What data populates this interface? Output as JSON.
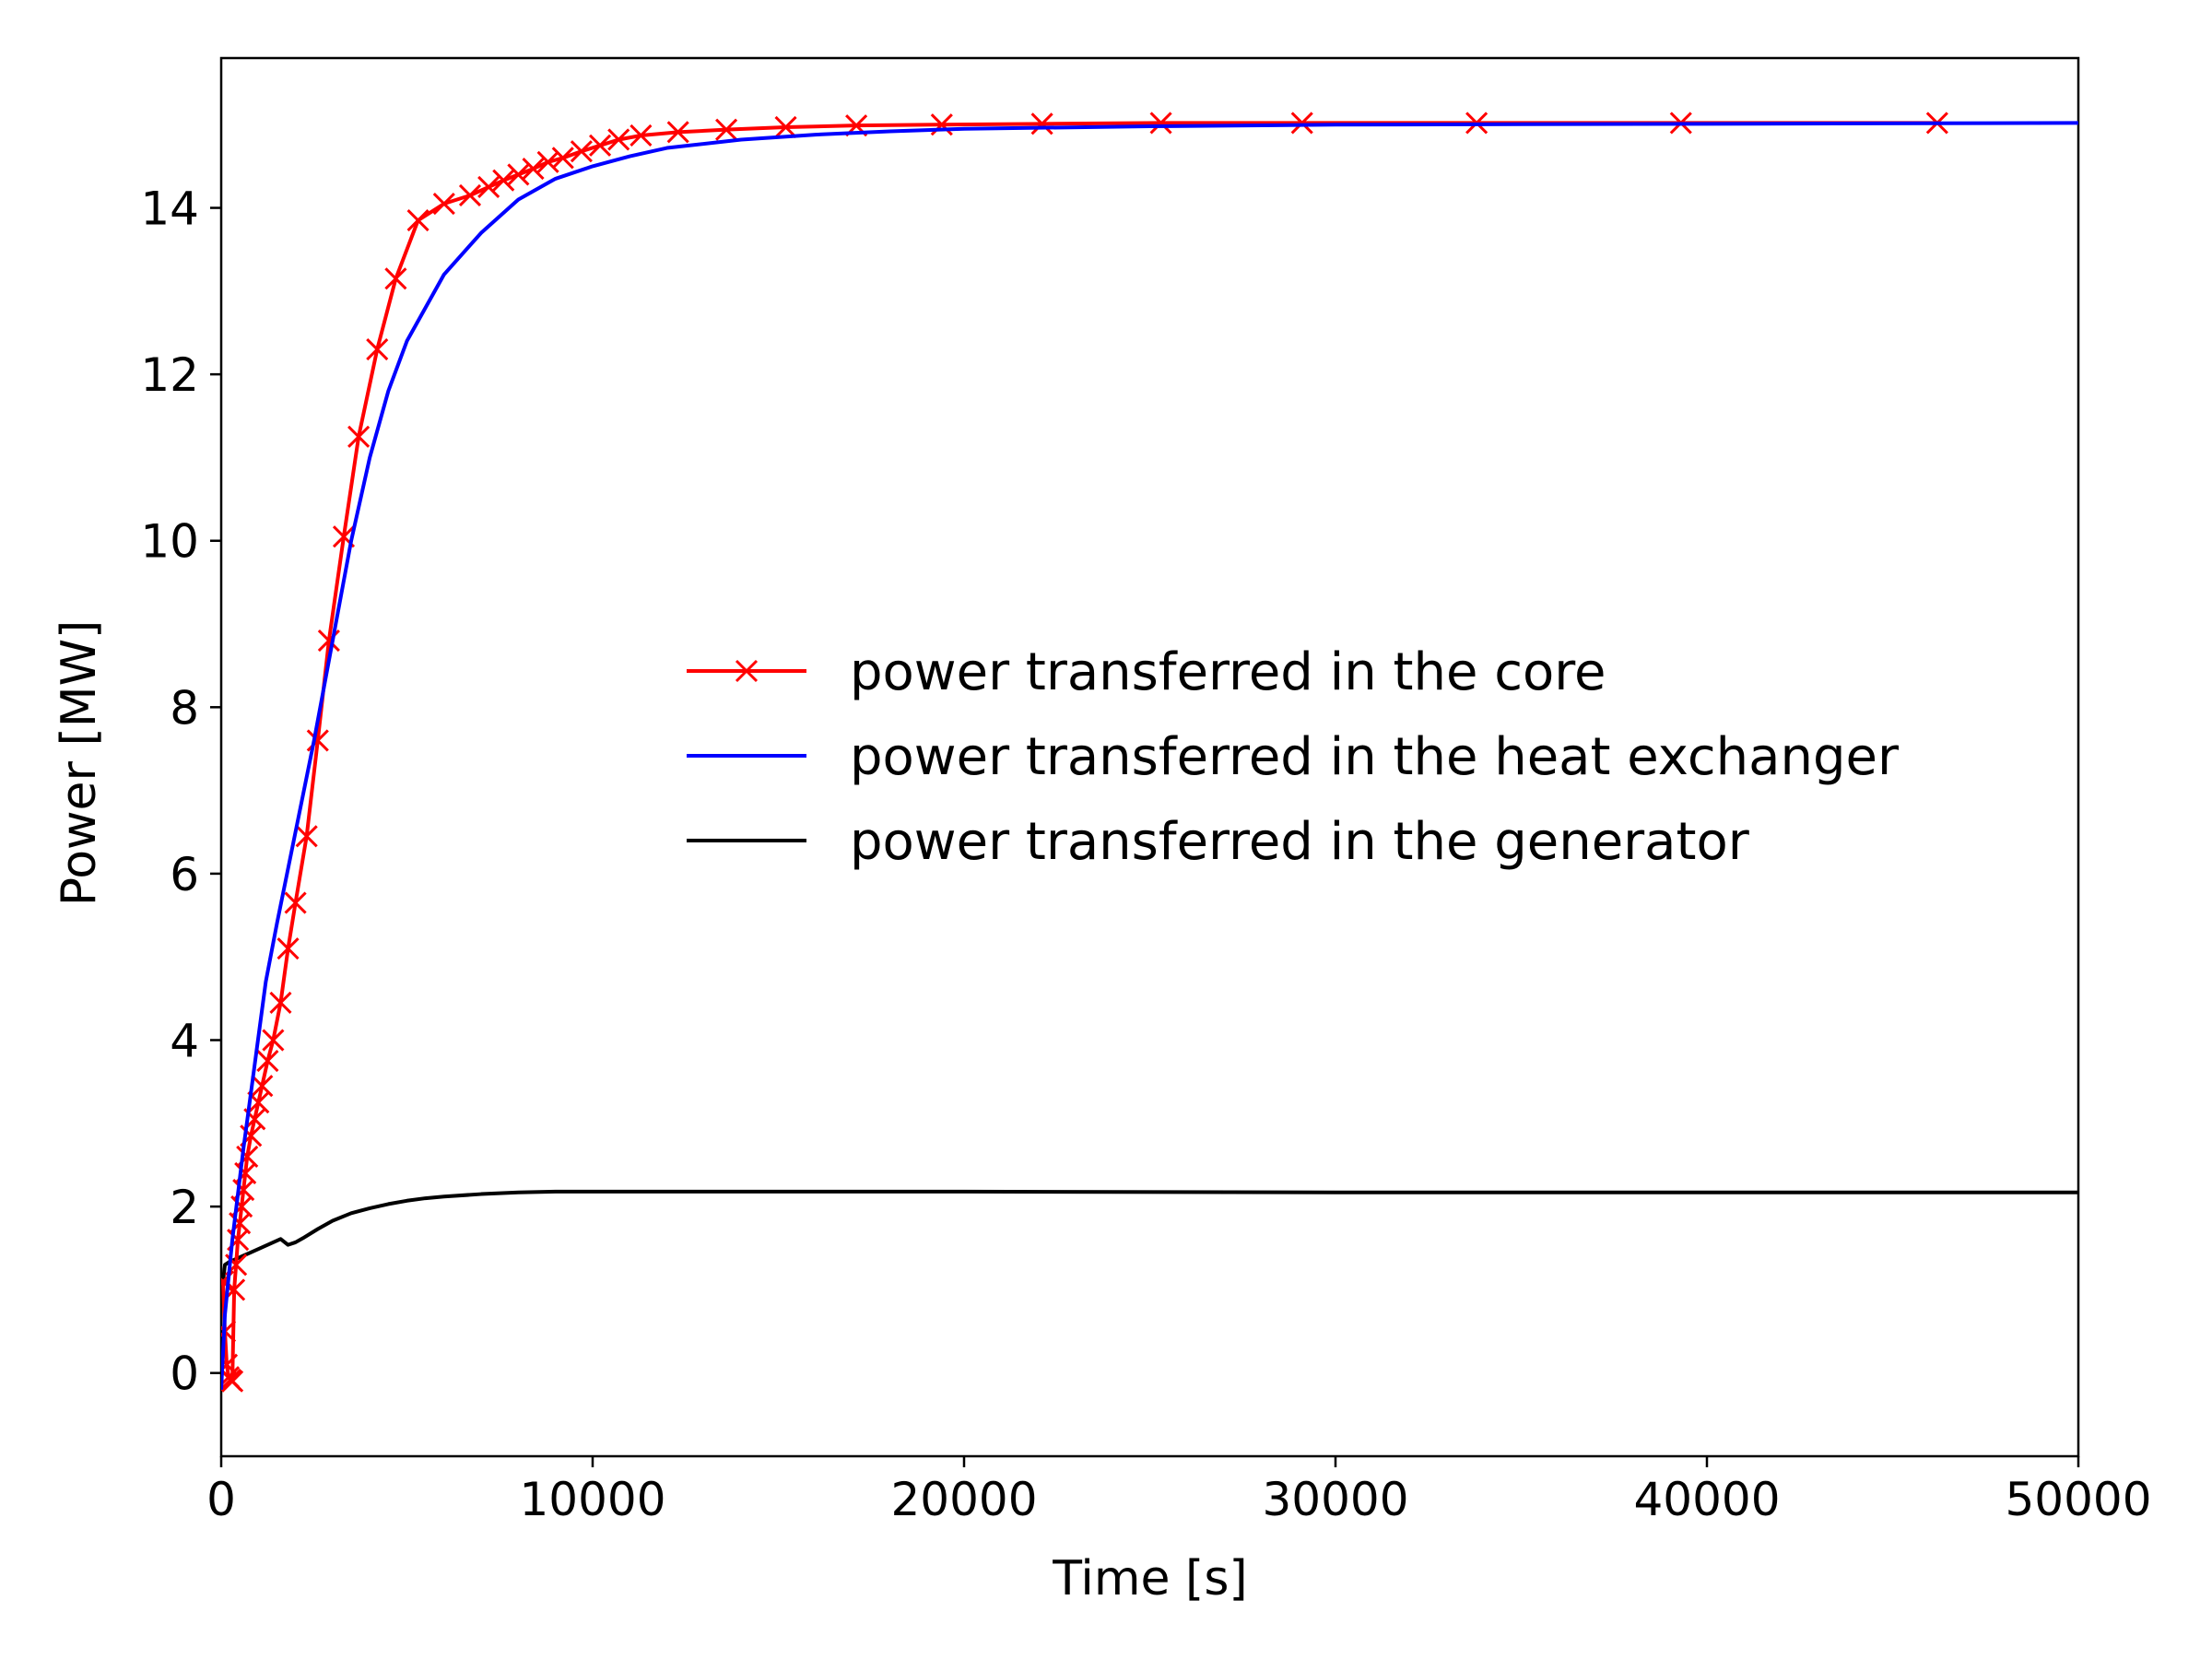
{
  "chart_data": {
    "type": "line",
    "xlabel": "Time [s]",
    "ylabel": "Power [MW]",
    "xlim": [
      0,
      50000
    ],
    "ylim": [
      -1,
      15.8
    ],
    "xticks": [
      0,
      10000,
      20000,
      30000,
      40000,
      50000
    ],
    "yticks": [
      0,
      2,
      4,
      6,
      8,
      10,
      12,
      14
    ],
    "xtick_labels": [
      "0",
      "10000",
      "20000",
      "30000",
      "40000",
      "50000"
    ],
    "ytick_labels": [
      "0",
      "2",
      "4",
      "6",
      "8",
      "10",
      "12",
      "14"
    ],
    "grid": false,
    "legend_position": "center-right",
    "series": [
      {
        "name": "power transferred in the core",
        "color": "#ff0000",
        "marker": "x",
        "x": [
          50,
          100,
          150,
          200,
          250,
          300,
          350,
          400,
          450,
          500,
          550,
          600,
          650,
          700,
          800,
          900,
          1000,
          1100,
          1250,
          1400,
          1600,
          1800,
          2000,
          2300,
          2600,
          2900,
          3300,
          3700,
          4200,
          4700,
          5300,
          6000,
          6700,
          7200,
          7600,
          8000,
          8400,
          8800,
          9200,
          9700,
          10200,
          10700,
          11300,
          12300,
          13600,
          15200,
          17100,
          19400,
          22100,
          25300,
          29100,
          33800,
          39300,
          46200
        ],
        "y": [
          1.1,
          0.5,
          0.1,
          -0.05,
          -0.08,
          -0.1,
          1.0,
          1.3,
          1.6,
          1.8,
          2.0,
          2.2,
          2.4,
          2.6,
          2.85,
          3.05,
          3.25,
          3.45,
          3.75,
          4.0,
          4.45,
          5.1,
          5.65,
          6.45,
          7.6,
          8.8,
          10.05,
          11.25,
          12.3,
          13.15,
          13.85,
          14.05,
          14.15,
          14.25,
          14.33,
          14.4,
          14.47,
          14.55,
          14.6,
          14.68,
          14.75,
          14.82,
          14.87,
          14.91,
          14.94,
          14.97,
          14.99,
          15.0,
          15.01,
          15.02,
          15.02,
          15.02,
          15.02,
          15.02
        ],
        "y_note": ""
      },
      {
        "name": "power transferred in the heat exchanger",
        "color": "#0000ff",
        "marker": "",
        "x": [
          0,
          100,
          300,
          600,
          900,
          1200,
          1500,
          2000,
          2500,
          3000,
          3500,
          4000,
          4500,
          5000,
          6000,
          7000,
          8000,
          9000,
          10000,
          11000,
          12000,
          14000,
          16000,
          18000,
          20000,
          25000,
          30000,
          40000,
          50000
        ],
        "y": [
          -0.2,
          0.7,
          1.6,
          2.7,
          3.7,
          4.7,
          5.4,
          6.5,
          7.6,
          8.8,
          10.0,
          11.0,
          11.8,
          12.4,
          13.2,
          13.7,
          14.1,
          14.35,
          14.5,
          14.62,
          14.72,
          14.82,
          14.88,
          14.92,
          14.95,
          14.98,
          15.0,
          15.01,
          15.02
        ]
      },
      {
        "name": "power transferred in the generator",
        "color": "#000000",
        "marker": "",
        "x": [
          0,
          100,
          200,
          400,
          600,
          800,
          1000,
          1200,
          1400,
          1600,
          1800,
          2000,
          2200,
          2600,
          3000,
          3500,
          4000,
          4500,
          5000,
          5500,
          6000,
          7000,
          8000,
          9000,
          10000,
          15000,
          20000,
          30000,
          40000,
          50000
        ],
        "y": [
          0.9,
          1.3,
          1.33,
          1.37,
          1.41,
          1.45,
          1.49,
          1.53,
          1.57,
          1.61,
          1.54,
          1.57,
          1.62,
          1.73,
          1.83,
          1.92,
          1.98,
          2.03,
          2.07,
          2.1,
          2.12,
          2.15,
          2.17,
          2.18,
          2.18,
          2.18,
          2.18,
          2.17,
          2.17,
          2.17
        ]
      }
    ]
  }
}
